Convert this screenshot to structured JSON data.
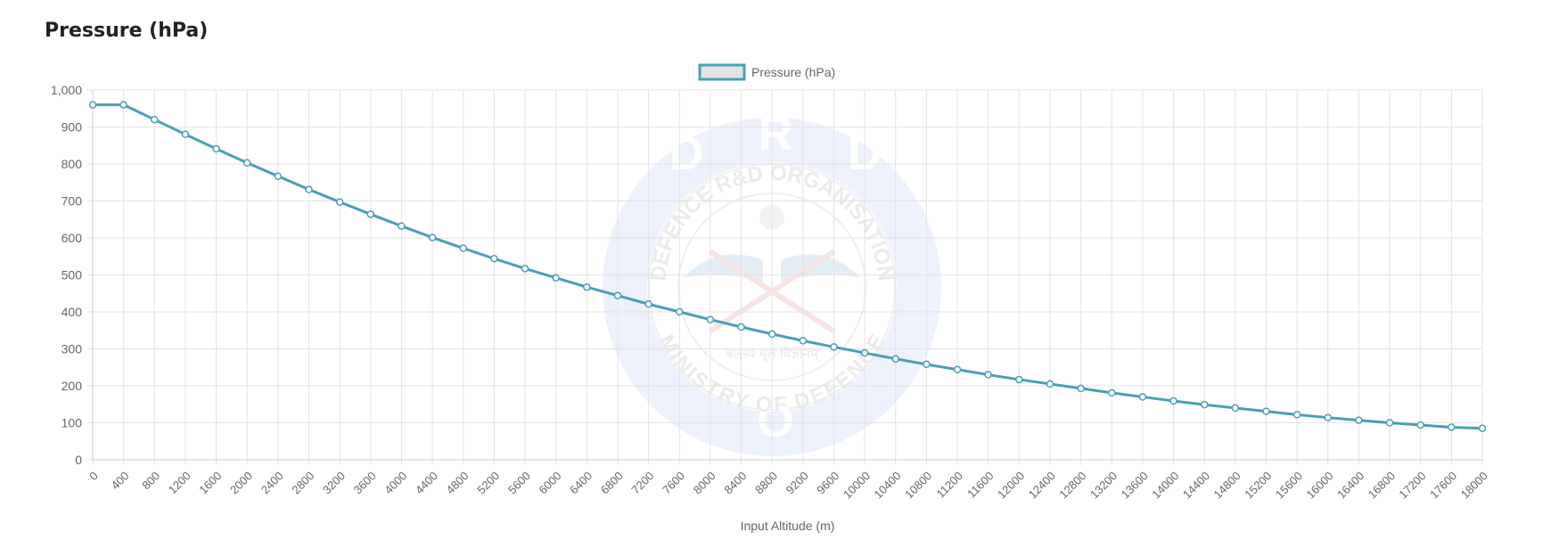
{
  "page": {
    "title": "Pressure (hPa)"
  },
  "chart_data": {
    "type": "line",
    "title": "",
    "xlabel": "Input Altitude (m)",
    "ylabel": "",
    "ylim": [
      0,
      1000
    ],
    "y_ticks": [
      "0",
      "100",
      "200",
      "300",
      "400",
      "500",
      "600",
      "700",
      "800",
      "900",
      "1,000"
    ],
    "grid": true,
    "legend_position": "top-center",
    "accent_color": "#4a9fb5",
    "legend_fill_color": "#e3e3e3",
    "categories": [
      "0",
      "400",
      "800",
      "1200",
      "1600",
      "2000",
      "2400",
      "2800",
      "3200",
      "3600",
      "4000",
      "4400",
      "4800",
      "5200",
      "5600",
      "6000",
      "6400",
      "6800",
      "7200",
      "7600",
      "8000",
      "8400",
      "8800",
      "9200",
      "9600",
      "10000",
      "10400",
      "10800",
      "11200",
      "11600",
      "12000",
      "12400",
      "12800",
      "13200",
      "13600",
      "14000",
      "14400",
      "14800",
      "15200",
      "15600",
      "16000",
      "16400",
      "16800",
      "17200",
      "17600",
      "18000"
    ],
    "series": [
      {
        "name": "Pressure (hPa)",
        "values": [
          960,
          960,
          920,
          880,
          841,
          803,
          767,
          731,
          697,
          664,
          632,
          601,
          572,
          544,
          517,
          492,
          467,
          444,
          421,
          400,
          379,
          359,
          340,
          322,
          305,
          289,
          273,
          258,
          244,
          230,
          217,
          205,
          193,
          181,
          170,
          159,
          149,
          140,
          131,
          122,
          114,
          107,
          100,
          94,
          88,
          85
        ]
      }
    ],
    "watermark": {
      "outer_letters": [
        "D",
        "R",
        "D",
        "O"
      ],
      "ring_top": "DEFENCE R&D ORGANISATION",
      "ring_bottom": "MINISTRY OF DEFENCE",
      "motto": "बलस्य मूलं विज्ञानम्"
    }
  }
}
